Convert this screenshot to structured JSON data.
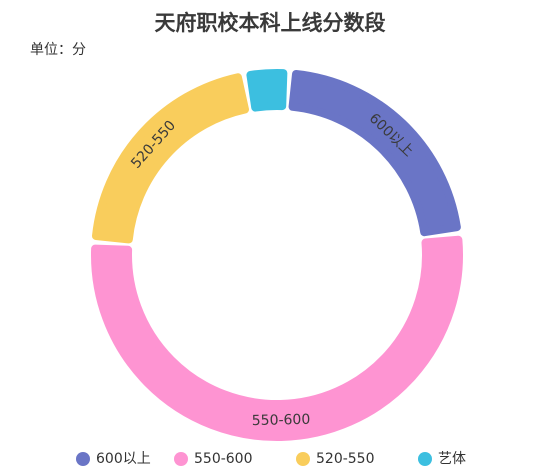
{
  "chart_data": {
    "type": "pie",
    "variant": "donut",
    "title": "天府职校本科上线分数段",
    "unit_label": "单位：分",
    "categories": [
      "600以上",
      "550-600",
      "520-550",
      "艺体"
    ],
    "values": [
      22,
      53,
      21,
      4
    ],
    "colors": [
      "#6a75c6",
      "#fe94d2",
      "#f9cd5c",
      "#3cbfe0"
    ],
    "slice_labels_shown": [
      true,
      true,
      true,
      false
    ],
    "legend": {
      "position": "bottom",
      "items": [
        "600以上",
        "550-600",
        "520-550",
        "艺体"
      ]
    }
  }
}
